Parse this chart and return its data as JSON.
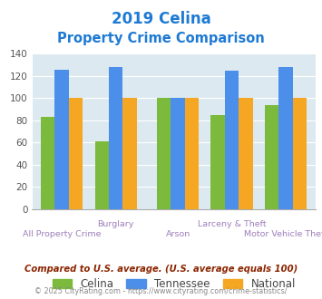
{
  "title_line1": "2019 Celina",
  "title_line2": "Property Crime Comparison",
  "title_color": "#1e7ad4",
  "categories": [
    "All Property Crime",
    "Burglary",
    "Arson",
    "Larceny & Theft",
    "Motor Vehicle Theft"
  ],
  "celina": [
    83,
    61,
    100,
    85,
    94
  ],
  "tennessee": [
    126,
    128,
    100,
    125,
    128
  ],
  "national": [
    100,
    100,
    100,
    100,
    100
  ],
  "celina_color": "#7cba3d",
  "tennessee_color": "#4c8fea",
  "national_color": "#f5a623",
  "bg_color": "#dce9f0",
  "ylim": [
    0,
    140
  ],
  "yticks": [
    0,
    20,
    40,
    60,
    80,
    100,
    120,
    140
  ],
  "legend_labels": [
    "Celina",
    "Tennessee",
    "National"
  ],
  "footnote1": "Compared to U.S. average. (U.S. average equals 100)",
  "footnote2": "© 2025 CityRating.com - https://www.cityrating.com/crime-statistics/",
  "footnote1_color": "#8b2500",
  "footnote2_color": "#888888",
  "label_color": "#9e7fba"
}
